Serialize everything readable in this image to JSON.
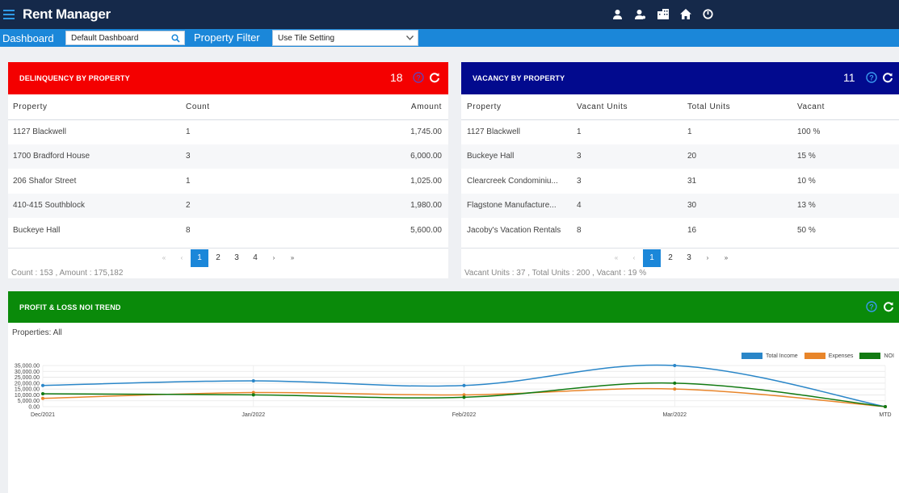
{
  "app": {
    "title": "Rent Manager"
  },
  "filterbar": {
    "dashboard_label": "Dashboard",
    "dashboard_value": "Default Dashboard",
    "property_filter_label": "Property Filter",
    "property_filter_value": "Use Tile Setting"
  },
  "delinquency": {
    "title": "DELINQUENCY BY PROPERTY",
    "count": "18",
    "color": "#f40000",
    "headers": [
      "Property",
      "Count",
      "Amount"
    ],
    "rows": [
      [
        "1127 Blackwell",
        "1",
        "1,745.00"
      ],
      [
        "1700 Bradford House",
        "3",
        "6,000.00"
      ],
      [
        "206 Shafor Street",
        "1",
        "1,025.00"
      ],
      [
        "410-415 Southblock",
        "2",
        "1,980.00"
      ],
      [
        "Buckeye Hall",
        "8",
        "5,600.00"
      ]
    ],
    "pages": [
      "1",
      "2",
      "3",
      "4"
    ],
    "summary": "Count : 153 , Amount : 175,182"
  },
  "vacancy": {
    "title": "VACANCY BY PROPERTY",
    "count": "11",
    "color": "#020a8e",
    "headers": [
      "Property",
      "Vacant Units",
      "Total Units",
      "Vacant"
    ],
    "rows": [
      [
        "1127 Blackwell",
        "1",
        "1",
        "100 %"
      ],
      [
        "Buckeye Hall",
        "3",
        "20",
        "15 %"
      ],
      [
        "Clearcreek Condominiu...",
        "3",
        "31",
        "10 %"
      ],
      [
        "Flagstone Manufacture...",
        "4",
        "30",
        "13 %"
      ],
      [
        "Jacoby's Vacation Rentals",
        "8",
        "16",
        "50 %"
      ]
    ],
    "pages": [
      "1",
      "2",
      "3"
    ],
    "summary": "Vacant Units : 37 , Total Units : 200 , Vacant : 19 %"
  },
  "pnl": {
    "title": "PROFIT & LOSS NOI TREND",
    "color": "#0a8a0a",
    "properties_label": "Properties: All"
  },
  "pager_icons": {
    "first": "«",
    "prev": "‹",
    "next": "›",
    "last": "»"
  },
  "chart_data": {
    "type": "line",
    "categories": [
      "Dec/2021",
      "Jan/2022",
      "Feb/2022",
      "Mar/2022",
      "MTD"
    ],
    "y_ticks": [
      "35,000.00",
      "30,000.00",
      "25,000.00",
      "20,000.00",
      "15,000.00",
      "10,000.00",
      "5,000.00",
      "0.00"
    ],
    "ylim": [
      0,
      35000
    ],
    "legend_position": "top-right",
    "series": [
      {
        "name": "Total Income",
        "color": "#2a86c8",
        "values": [
          18000,
          22000,
          18000,
          35000,
          0
        ]
      },
      {
        "name": "Expenses",
        "color": "#e8852a",
        "values": [
          7000,
          12000,
          10000,
          15000,
          0
        ]
      },
      {
        "name": "NOI",
        "color": "#127a12",
        "values": [
          11000,
          10000,
          8000,
          20000,
          0
        ]
      }
    ]
  }
}
